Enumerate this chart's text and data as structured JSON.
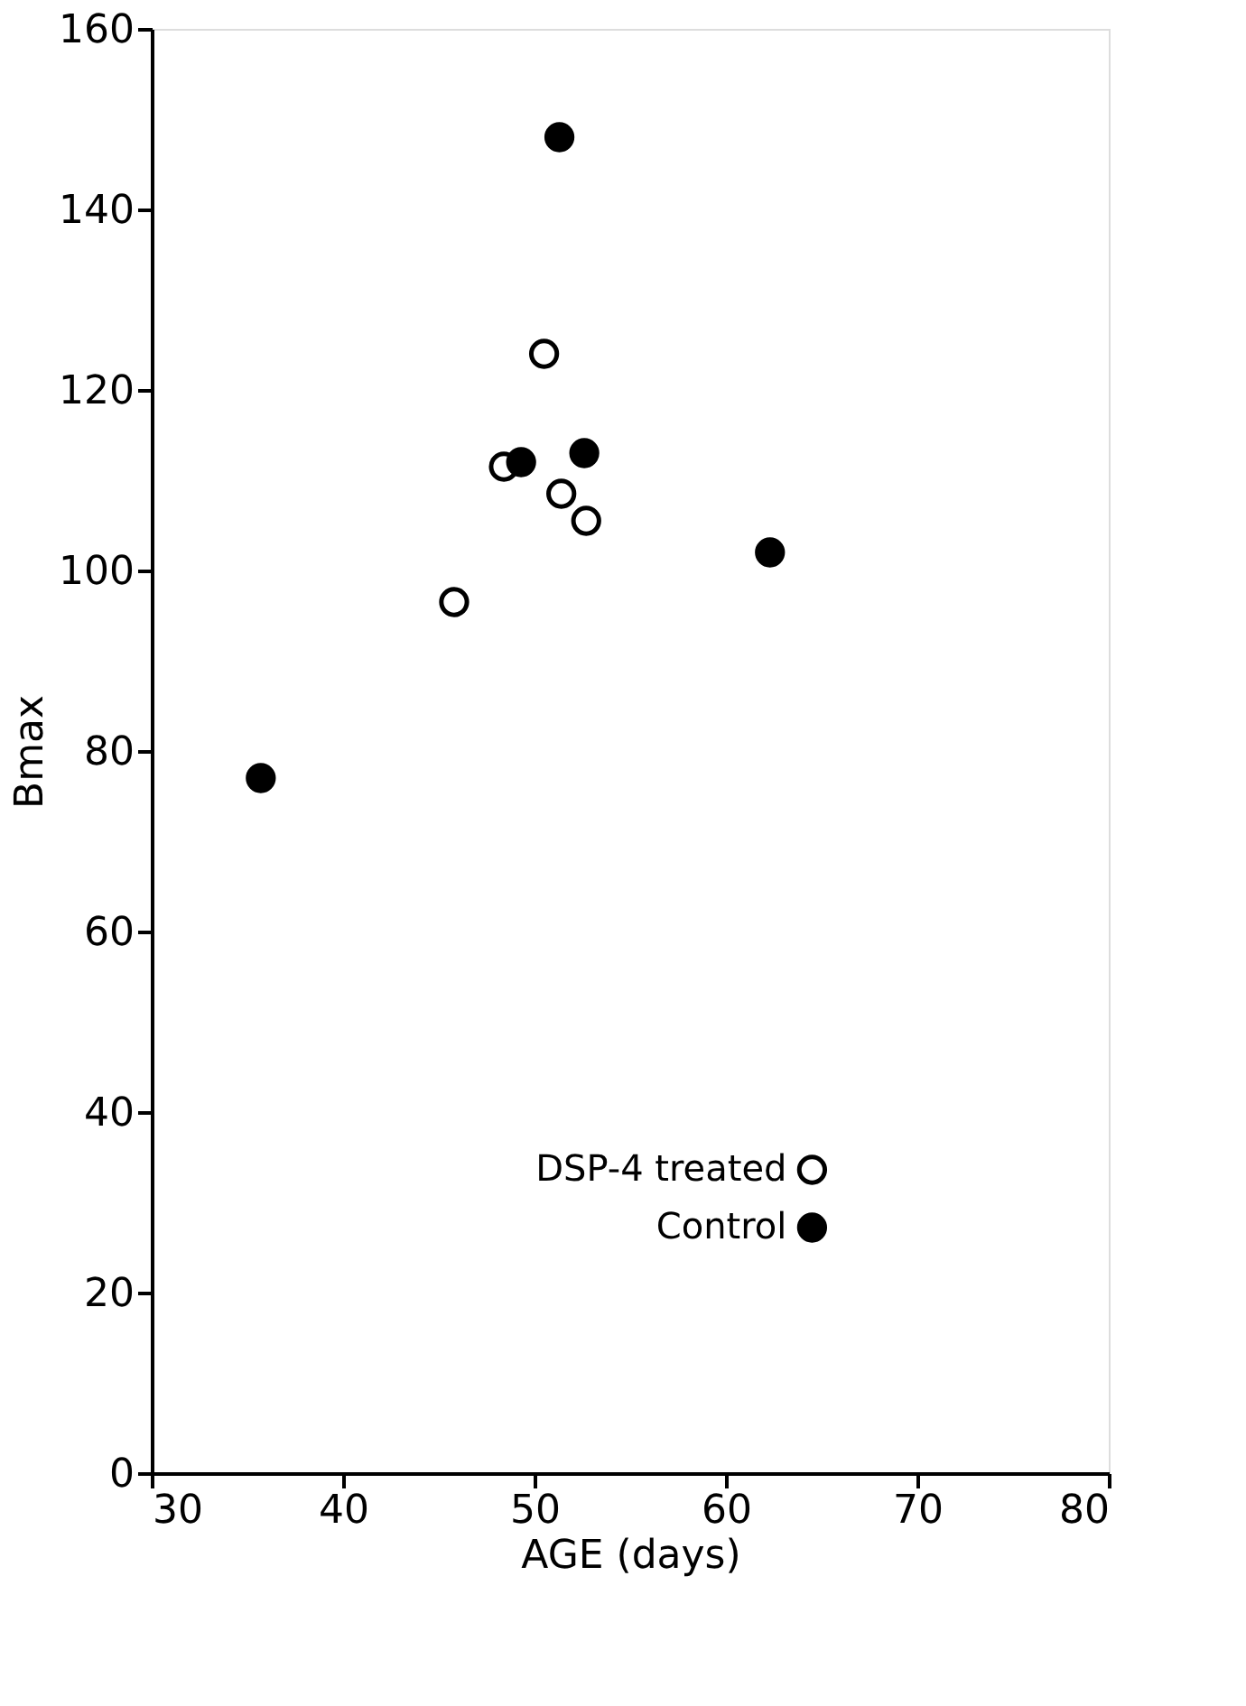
{
  "chart_data": {
    "type": "scatter",
    "xlabel": "AGE (days)",
    "ylabel": "Bmax",
    "xlim": [
      30,
      80
    ],
    "xticks": [
      30,
      40,
      50,
      60,
      70,
      80
    ],
    "ylim": [
      0,
      160
    ],
    "yticks": [
      0,
      20,
      40,
      60,
      80,
      100,
      120,
      140,
      160
    ],
    "grid": false,
    "legend": "bottom right",
    "marker": "circle",
    "series": [
      {
        "name": "DSP-4 treated",
        "color": "#ffffff",
        "x": [
          45.8,
          48.4,
          50.5,
          51.4,
          52.7
        ],
        "values": [
          96.5,
          111.5,
          124,
          108.5,
          105.5
        ]
      },
      {
        "name": "Control",
        "color": "#000000",
        "x": [
          35.7,
          49.3,
          51.3,
          52.6,
          62.3
        ],
        "values": [
          77,
          112,
          148,
          113,
          102
        ]
      }
    ]
  }
}
